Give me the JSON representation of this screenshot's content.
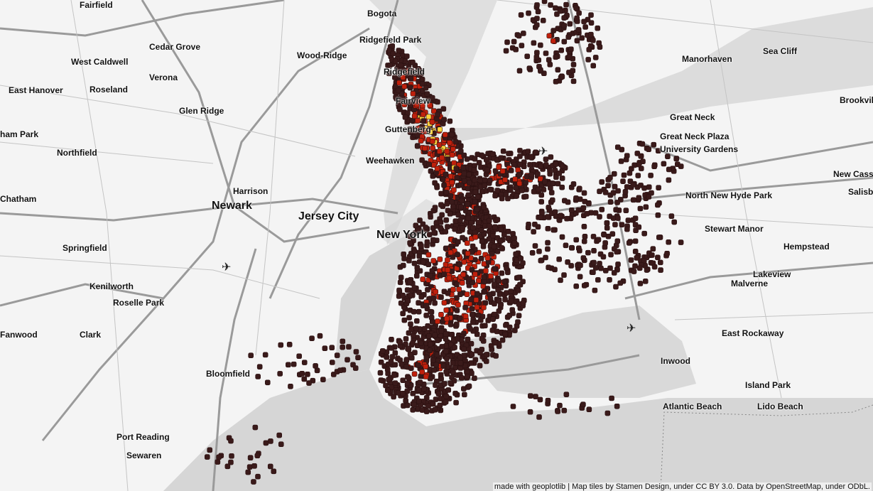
{
  "map": {
    "labels": [
      "Fairfield",
      "Bogota",
      "Ridgefield Park",
      "Cedar Grove",
      "West Caldwell",
      "Wood-Ridge",
      "Ridgefield",
      "Verona",
      "East Hanover",
      "Roseland",
      "Manorhaven",
      "Sea Cliff",
      "Fairview",
      "Glen Ridge",
      "Great Neck",
      "Brookvil",
      "ham Park",
      "Guttenberg",
      "Great Neck Plaza",
      "Northfield",
      "University Gardens",
      "Weehawken",
      "New Cass",
      "Harrison",
      "Salisb",
      "Chatham",
      "Newark",
      "Jersey City",
      "North New Hyde Park",
      "New York",
      "Stewart Manor",
      "Springfield",
      "Hempstead",
      "Lakeview",
      "Malverne",
      "Kenilworth",
      "Roselle Park",
      "Fanwood",
      "Clark",
      "East Rockaway",
      "Bloomfield",
      "Inwood",
      "Island Park",
      "Atlantic Beach",
      "Lido Beach",
      "Port Reading",
      "Sewaren"
    ],
    "attribution": "made with geoplotlib | Map tiles by Stamen Design, under CC BY 3.0. Data by OpenStreetMap, under ODbL.",
    "colors": {
      "land": "#f4f4f4",
      "water": "#d6d6d6",
      "road": "#9a9a9a",
      "heat_low": "#3a1a1a",
      "heat_mid": "#c0200c",
      "heat_high": "#ffd23a"
    },
    "icons": [
      "airport-icon",
      "airport-icon",
      "airport-icon"
    ]
  }
}
